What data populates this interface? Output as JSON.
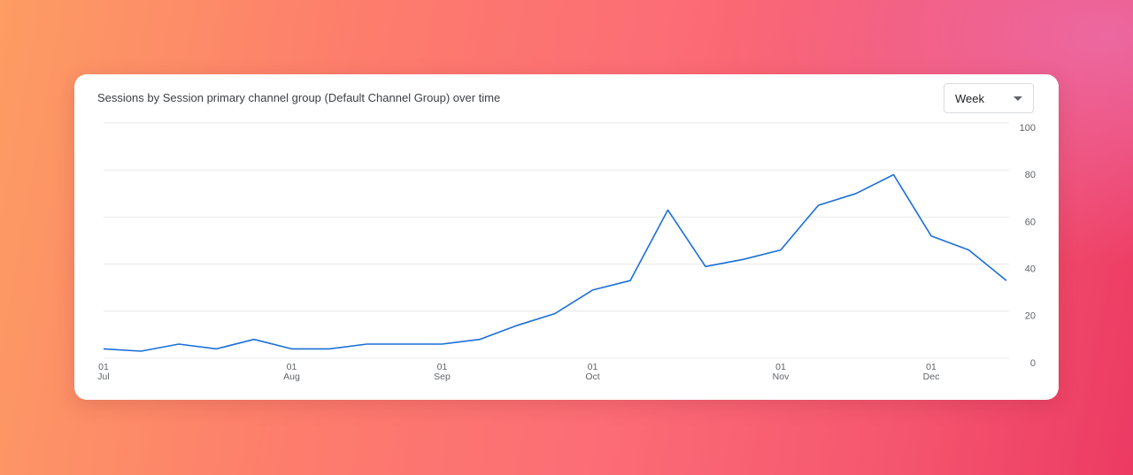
{
  "chart_data": {
    "type": "line",
    "title": "Sessions by Session primary channel group (Default Channel Group) over time",
    "interval": "Week",
    "categories": [
      "01\nJul",
      null,
      null,
      null,
      null,
      "01\nAug",
      null,
      null,
      null,
      "01\nSep",
      null,
      null,
      null,
      "01\nOct",
      null,
      null,
      null,
      null,
      "01\nNov",
      null,
      null,
      null,
      "01\nDec",
      null,
      null
    ],
    "values": [
      4,
      3,
      6,
      4,
      8,
      4,
      4,
      6,
      6,
      6,
      8,
      14,
      19,
      29,
      33,
      63,
      39,
      42,
      46,
      65,
      70,
      78,
      52,
      46,
      33
    ],
    "color": "#1a6fd8",
    "ylim": [
      0,
      100
    ],
    "yticks": [
      0,
      20,
      40,
      60,
      80,
      100
    ],
    "grid": true
  }
}
